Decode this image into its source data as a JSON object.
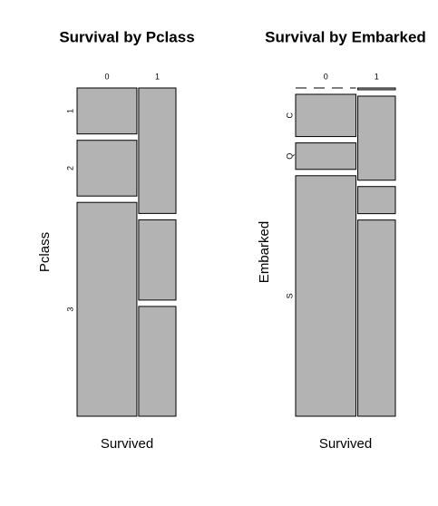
{
  "chart_data": [
    {
      "type": "mosaic",
      "title": "Survival by Pclass",
      "xlabel": "Survived",
      "ylabel": "Pclass",
      "categories": [
        "0",
        "1"
      ],
      "rows": [
        "1",
        "2",
        "3"
      ],
      "values": [
        [
          80,
          136
        ],
        [
          97,
          87
        ],
        [
          372,
          119
        ]
      ],
      "color": "#b3b3b3"
    },
    {
      "type": "mosaic",
      "title": "Survival by Embarked",
      "xlabel": "Survived",
      "ylabel": "Embarked",
      "categories": [
        "0",
        "1"
      ],
      "rows": [
        null,
        "C",
        "Q",
        "S"
      ],
      "values": [
        [
          0,
          2
        ],
        [
          75,
          93
        ],
        [
          47,
          30
        ],
        [
          427,
          217
        ]
      ],
      "color": "#b3b3b3"
    }
  ]
}
